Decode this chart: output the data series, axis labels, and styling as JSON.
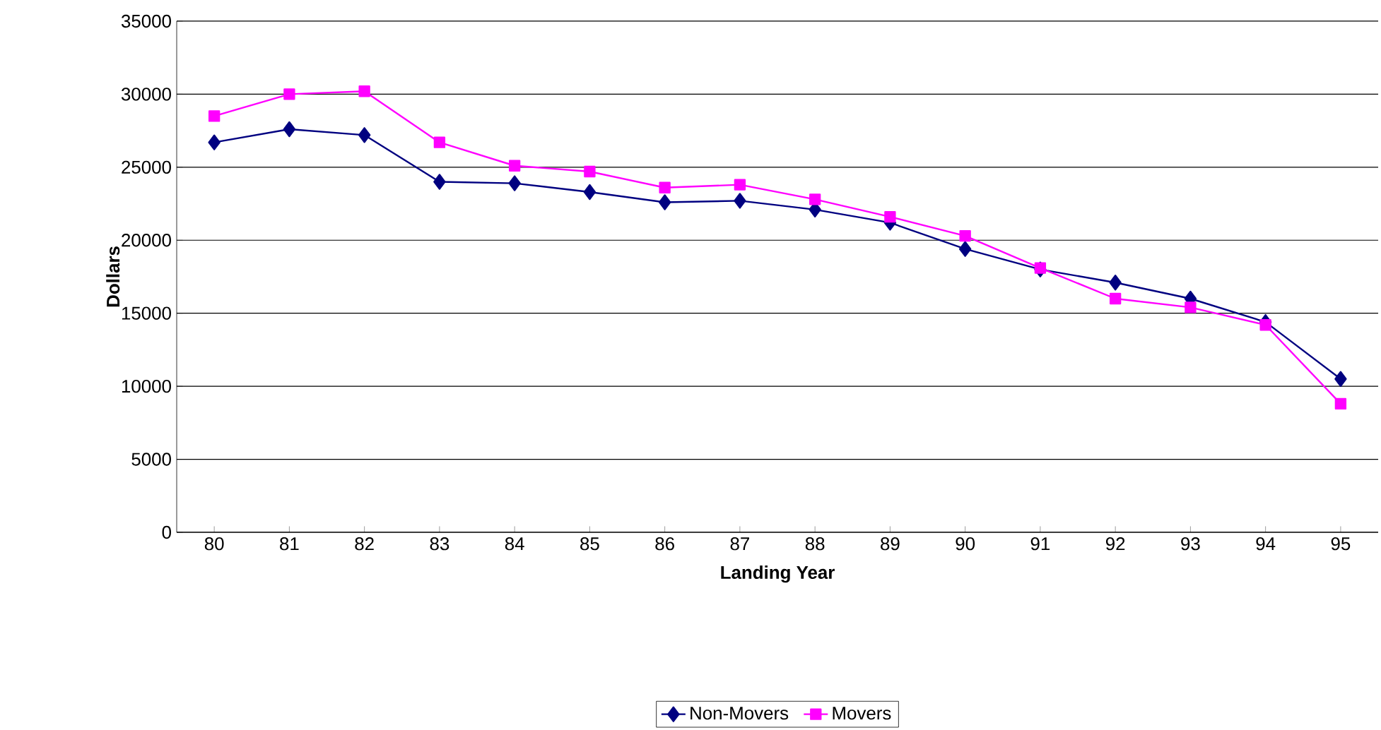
{
  "chart_data": {
    "type": "line",
    "xlabel": "Landing Year",
    "ylabel": "Dollars",
    "categories": [
      "80",
      "81",
      "82",
      "83",
      "84",
      "85",
      "86",
      "87",
      "88",
      "89",
      "90",
      "91",
      "92",
      "93",
      "94",
      "95"
    ],
    "series": [
      {
        "name": "Non-Movers",
        "color": "#000080",
        "marker": "diamond",
        "values": [
          26700,
          27600,
          27200,
          24000,
          23900,
          23300,
          22600,
          22700,
          22100,
          21200,
          19400,
          18000,
          17100,
          16000,
          14400,
          10500
        ]
      },
      {
        "name": "Movers",
        "color": "#ff00ff",
        "marker": "square",
        "values": [
          28500,
          30000,
          30200,
          26700,
          25100,
          24700,
          23600,
          23800,
          22800,
          21600,
          20300,
          18100,
          16000,
          15400,
          14200,
          8800
        ]
      }
    ],
    "ylim": [
      0,
      35000
    ],
    "yticks": [
      0,
      5000,
      10000,
      15000,
      20000,
      25000,
      30000,
      35000
    ],
    "grid": "y",
    "legend": "bottom",
    "line_style": "solid"
  }
}
